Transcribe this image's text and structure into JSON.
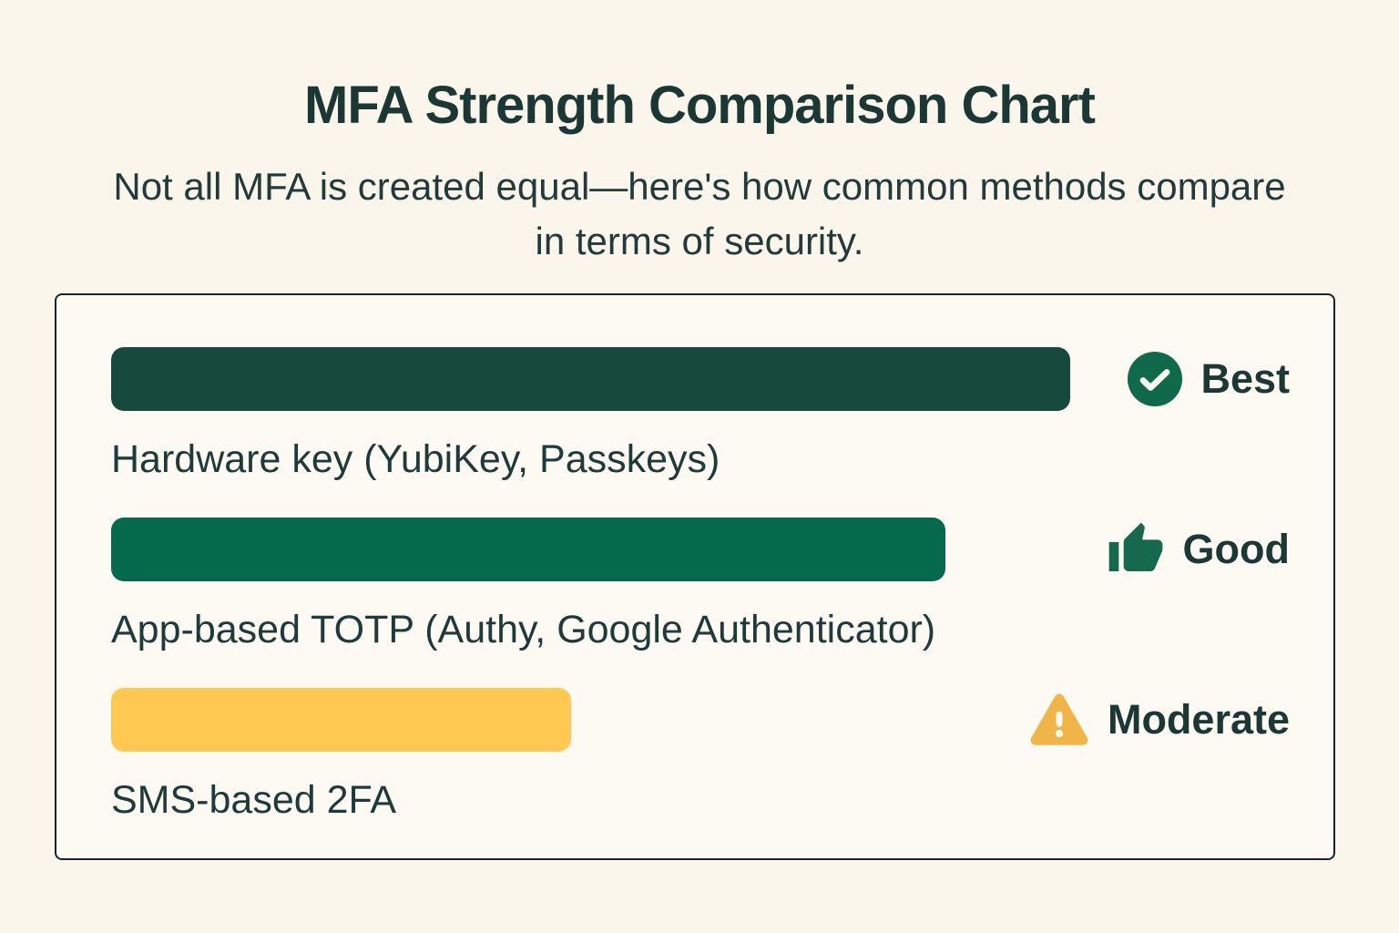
{
  "page": {
    "background": "#FAF6EB",
    "header": {
      "title": "MFA Strength Comparison Chart",
      "subtitle": "Not all MFA is created equal—here's how common methods compare in terms of security."
    }
  },
  "panel": {
    "background": "#FCFAF2",
    "border_color": "#152528"
  },
  "methods": [
    {
      "label": "Hardware key (YubiKey, Passkeys)",
      "rating": "Best",
      "icon": "check-circle",
      "bar_color": "#17493C",
      "icon_color": "#0E6A4A",
      "value": 100
    },
    {
      "label": "App-based TOTP (Authy, Google Authenticator)",
      "rating": "Good",
      "icon": "thumbs-up",
      "bar_color": "#056A4B",
      "icon_color": "#156A4D",
      "value": 87
    },
    {
      "label": "SMS-based 2FA",
      "rating": "Moderate",
      "icon": "warning-triangle",
      "bar_color": "#FFC850",
      "icon_color": "#F0B546",
      "value": 48
    }
  ],
  "colors": {
    "title_text": "#1B3834",
    "subtitle_text": "#223B3A",
    "label_text": "#1E3B39"
  },
  "chart_data": {
    "type": "bar",
    "orientation": "horizontal",
    "title": "MFA Strength Comparison Chart",
    "subtitle": "Not all MFA is created equal—here's how common methods compare in terms of security.",
    "categories": [
      "Hardware key (YubiKey, Passkeys)",
      "App-based TOTP (Authy, Google Authenticator)",
      "SMS-based 2FA"
    ],
    "values": [
      100,
      87,
      48
    ],
    "value_note": "relative bar length, % of longest bar (no numeric axis shown)",
    "ratings": [
      "Best",
      "Good",
      "Moderate"
    ],
    "bar_colors": [
      "#17493C",
      "#056A4B",
      "#FFC850"
    ],
    "xlabel": "",
    "ylabel": "",
    "xlim": [
      0,
      100
    ],
    "grid": false,
    "legend_position": "rating badges right of each bar"
  }
}
